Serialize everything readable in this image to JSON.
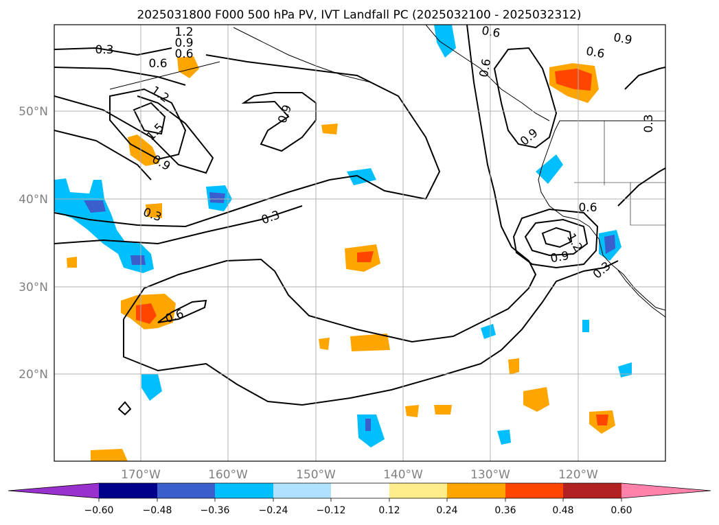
{
  "title": "2025031800 F000 500 hPa PV, IVT Landfall PC (2025032100 - 2025032312)",
  "map": {
    "lat_labels": [
      "50°N",
      "40°N",
      "30°N",
      "20°N"
    ],
    "lon_labels": [
      "170°W",
      "160°W",
      "150°W",
      "140°W",
      "130°W",
      "120°W"
    ],
    "contour_labels": [
      "1.2",
      "0.9",
      "0.6",
      "0.3",
      "0.6",
      "1.2",
      "1.5",
      "0.9",
      "0.9",
      "0.3",
      "0.3",
      "0.6",
      "0.6",
      "0.6",
      "0.9",
      "0.9",
      "0.6",
      "0.3",
      "0.9",
      "1.2",
      "0.3",
      "0.6"
    ]
  },
  "colorbar": {
    "ticks": [
      "−0.60",
      "−0.48",
      "−0.36",
      "−0.24",
      "−0.12",
      "0.12",
      "0.24",
      "0.36",
      "0.48",
      "0.60"
    ],
    "colors": {
      "under": "#9932cc",
      "bins": [
        "#00008b",
        "#3a5fcd",
        "#00bfff",
        "#b0e2ff",
        "#ffffff",
        "#ffec8b",
        "#ffa500",
        "#ff4500",
        "#b22222",
        "#ff82ab"
      ]
    }
  }
}
